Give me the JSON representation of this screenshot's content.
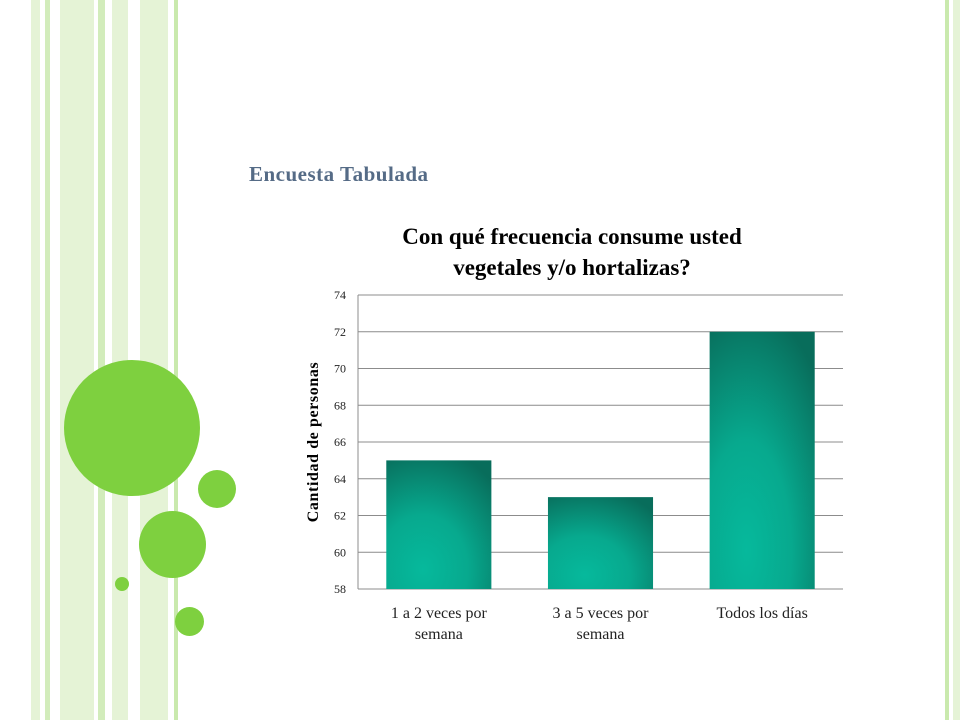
{
  "slide": {
    "title": "Encuesta Tabulada"
  },
  "theme": {
    "accent_green": "#7ed03f",
    "stripe_light": "#e5f3d6",
    "stripe_mid": "#c9e9ad",
    "title_color": "#556b86",
    "bar_light": "#06b99c",
    "bar_dark": "#086d5b"
  },
  "chart_data": {
    "type": "bar",
    "title": "Con qué frecuencia consume usted vegetales y/o hortalizas?",
    "title_lines": [
      "Con qué frecuencia consume usted",
      "vegetales y/o hortalizas?"
    ],
    "ylabel": "Cantidad de personas",
    "xlabel": "",
    "categories": [
      "1 a 2 veces por semana",
      "3 a 5 veces por semana",
      "Todos los días"
    ],
    "category_lines": [
      [
        "1 a 2 veces por",
        "semana"
      ],
      [
        "3 a 5 veces por",
        "semana"
      ],
      [
        "Todos los días"
      ]
    ],
    "values": [
      65,
      63,
      72
    ],
    "ylim": [
      58,
      74
    ],
    "yticks": [
      58,
      60,
      62,
      64,
      66,
      68,
      70,
      72,
      74
    ],
    "grid": true,
    "legend": "none"
  }
}
